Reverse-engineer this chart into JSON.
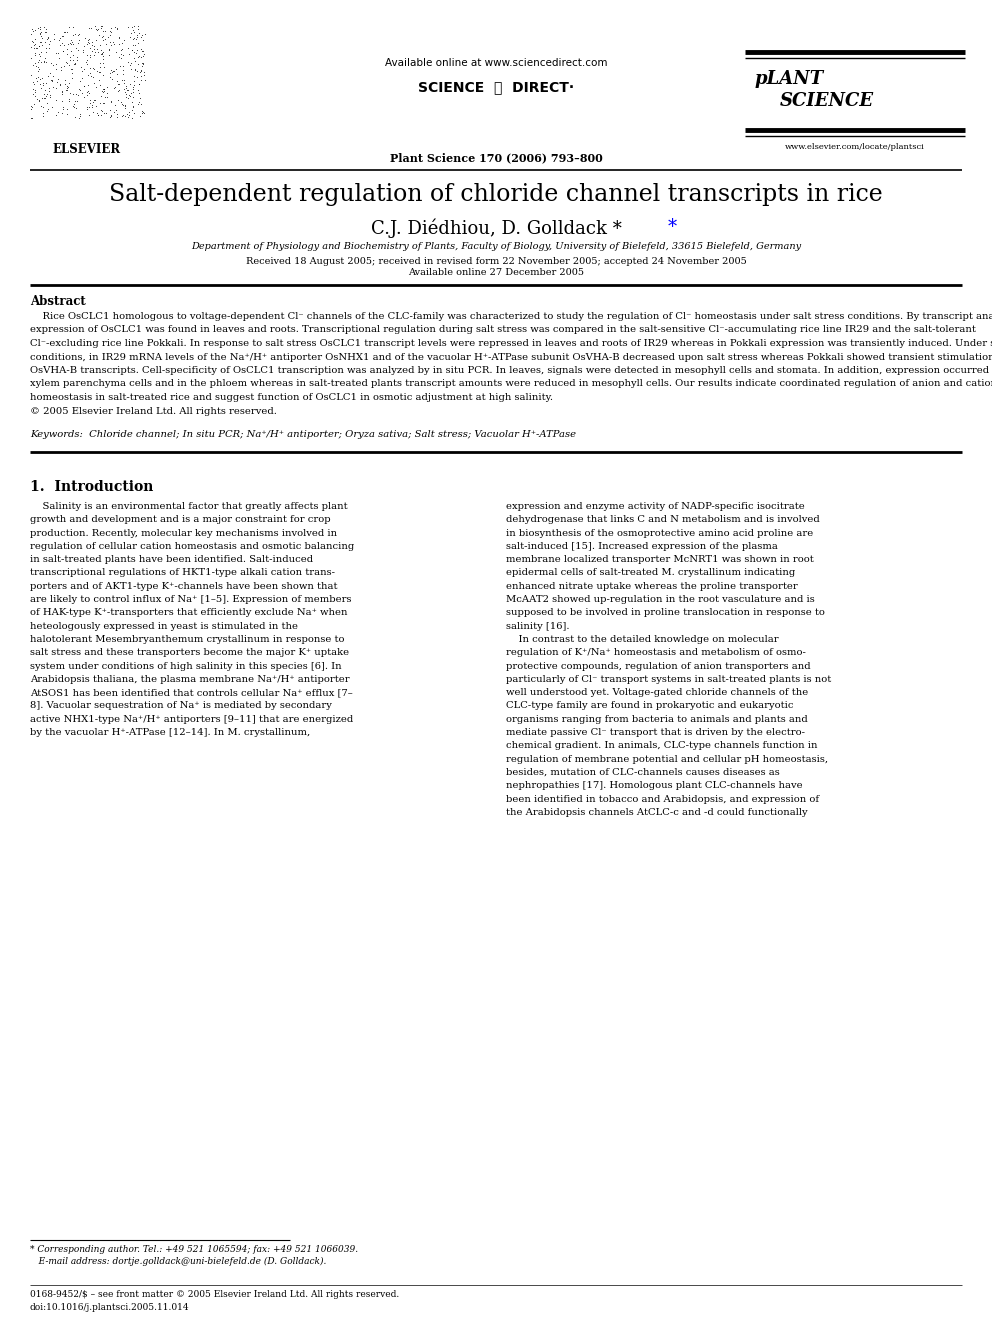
{
  "page_title": "Salt-dependent regulation of chloride channel transcripts in rice",
  "authors": "C.J. Diédhiou, D. Golldack *",
  "affiliation": "Department of Physiology and Biochemistry of Plants, Faculty of Biology, University of Bielefeld, 33615 Bielefeld, Germany",
  "received": "Received 18 August 2005; received in revised form 22 November 2005; accepted 24 November 2005",
  "available": "Available online 27 December 2005",
  "journal": "Plant Science 170 (2006) 793–800",
  "journal_url": "www.elsevier.com/locate/plantsci",
  "sciencedirect_url": "Available online at www.sciencedirect.com",
  "abstract_title": "Abstract",
  "keywords": "Keywords:  Chloride channel; In situ PCR; Na⁺/H⁺ antiporter; Oryza sativa; Salt stress; Vacuolar H⁺-ATPase",
  "section1_title": "1.  Introduction",
  "footnote_line1": "* Corresponding author. Tel.: +49 521 1065594; fax: +49 521 1066039.",
  "footnote_line2": "   E-mail address: dortje.golldack@uni-bielefeld.de (D. Golldack).",
  "footer_issn": "0168-9452/$ – see front matter © 2005 Elsevier Ireland Ltd. All rights reserved.",
  "footer_doi": "doi:10.1016/j.plantsci.2005.11.014",
  "bg_color": "#ffffff",
  "text_color": "#000000",
  "abstract_lines": [
    "    Rice OsCLC1 homologous to voltage-dependent Cl⁻ channels of the CLC-family was characterized to study the regulation of Cl⁻ homeostasis under salt stress conditions. By transcript analyses,",
    "expression of OsCLC1 was found in leaves and roots. Transcriptional regulation during salt stress was compared in the salt-sensitive Cl⁻-accumulating rice line IR29 and the salt-tolerant",
    "Cl⁻-excluding rice line Pokkali. In response to salt stress OsCLC1 transcript levels were repressed in leaves and roots of IR29 whereas in Pokkali expression was transiently induced. Under same",
    "conditions, in IR29 mRNA levels of the Na⁺/H⁺ antiporter OsNHX1 and of the vacuolar H⁺-ATPase subunit OsVHA-B decreased upon salt stress whereas Pokkali showed transient stimulation of",
    "OsVHA-B transcripts. Cell-specificity of OsCLC1 transcription was analyzed by in situ PCR. In leaves, signals were detected in mesophyll cells and stomata. In addition, expression occurred in",
    "xylem parenchyma cells and in the phloem whereas in salt-treated plants transcript amounts were reduced in mesophyll cells. Our results indicate coordinated regulation of anion and cation",
    "homeostasis in salt-treated rice and suggest function of OsCLC1 in osmotic adjustment at high salinity.",
    "© 2005 Elsevier Ireland Ltd. All rights reserved."
  ],
  "col1_lines": [
    "    Salinity is an environmental factor that greatly affects plant",
    "growth and development and is a major constraint for crop",
    "production. Recently, molecular key mechanisms involved in",
    "regulation of cellular cation homeostasis and osmotic balancing",
    "in salt-treated plants have been identified. Salt-induced",
    "transcriptional regulations of HKT1-type alkali cation trans-",
    "porters and of AKT1-type K⁺-channels have been shown that",
    "are likely to control influx of Na⁺ [1–5]. Expression of members",
    "of HAK-type K⁺-transporters that efficiently exclude Na⁺ when",
    "heteologously expressed in yeast is stimulated in the",
    "halotolerant Mesembryanthemum crystallinum in response to",
    "salt stress and these transporters become the major K⁺ uptake",
    "system under conditions of high salinity in this species [6]. In",
    "Arabidopsis thaliana, the plasma membrane Na⁺/H⁺ antiporter",
    "AtSOS1 has been identified that controls cellular Na⁺ efflux [7–",
    "8]. Vacuolar sequestration of Na⁺ is mediated by secondary",
    "active NHX1-type Na⁺/H⁺ antiporters [9–11] that are energized",
    "by the vacuolar H⁺-ATPase [12–14]. In M. crystallinum,"
  ],
  "col2_lines": [
    "expression and enzyme activity of NADP-specific isocitrate",
    "dehydrogenase that links C and N metabolism and is involved",
    "in biosynthesis of the osmoprotective amino acid proline are",
    "salt-induced [15]. Increased expression of the plasma",
    "membrane localized transporter McNRT1 was shown in root",
    "epidermal cells of salt-treated M. crystallinum indicating",
    "enhanced nitrate uptake whereas the proline transporter",
    "McAAT2 showed up-regulation in the root vasculature and is",
    "supposed to be involved in proline translocation in response to",
    "salinity [16].",
    "    In contrast to the detailed knowledge on molecular",
    "regulation of K⁺/Na⁺ homeostasis and metabolism of osmo-",
    "protective compounds, regulation of anion transporters and",
    "particularly of Cl⁻ transport systems in salt-treated plants is not",
    "well understood yet. Voltage-gated chloride channels of the",
    "CLC-type family are found in prokaryotic and eukaryotic",
    "organisms ranging from bacteria to animals and plants and",
    "mediate passive Cl⁻ transport that is driven by the electro-",
    "chemical gradient. In animals, CLC-type channels function in",
    "regulation of membrane potential and cellular pH homeostasis,",
    "besides, mutation of CLC-channels causes diseases as",
    "nephropathies [17]. Homologous plant CLC-channels have",
    "been identified in tobacco and Arabidopsis, and expression of",
    "the Arabidopsis channels AtCLC-c and -d could functionally"
  ]
}
